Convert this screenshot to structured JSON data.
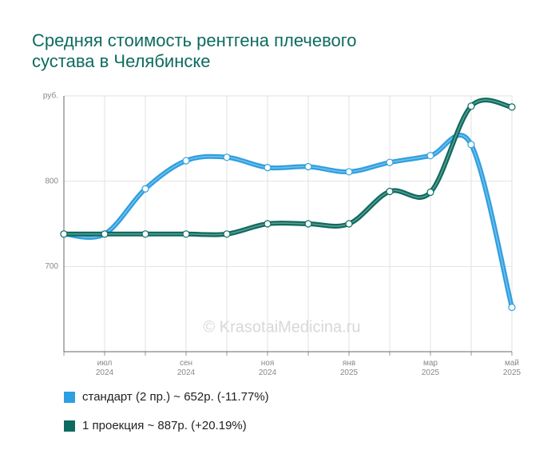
{
  "chart_data": {
    "type": "line",
    "title": "Средняя стоимость рентгена плечевого сустава в Челябинске",
    "watermark": "© KrasotaiMedicina.ru",
    "categories": [
      null,
      [
        "июл",
        "2024"
      ],
      null,
      [
        "сен",
        "2024"
      ],
      null,
      [
        "ноя",
        "2024"
      ],
      null,
      [
        "янв",
        "2025"
      ],
      null,
      [
        "мар",
        "2025"
      ],
      null,
      [
        "май",
        "2025"
      ]
    ],
    "series": [
      {
        "name": "стандарт (2 пр.) ~ 652р. (-11.77%)",
        "color": "#2e9fe0",
        "values": [
          738,
          738,
          791,
          824,
          828,
          816,
          817,
          811,
          822,
          830,
          843,
          652
        ]
      },
      {
        "name": "1 проекция ~ 887р. (+20.19%)",
        "color": "#0e6b5f",
        "values": [
          738,
          738,
          738,
          738,
          738,
          750,
          750,
          750,
          788,
          787,
          888,
          887
        ]
      }
    ],
    "ylim": [
      600,
      900
    ],
    "yticks": [
      700,
      800,
      {
        "value": 900,
        "label": "руб."
      }
    ],
    "grid": true
  }
}
